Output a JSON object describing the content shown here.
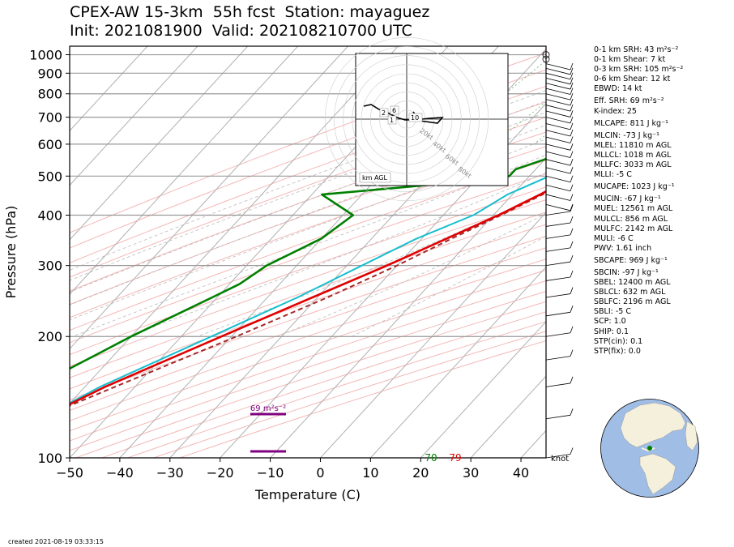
{
  "header": {
    "title_line1": "CPEX-AW 15-3km  55h fcst  Station: mayaguez",
    "title_line2": "Init: 2021081900  Valid: 2021082107​00 UTC"
  },
  "footer": {
    "created": "created 2021-08-19 03:33:15"
  },
  "colors": {
    "temperature": "#e00000",
    "dewpoint": "#008000",
    "wetbulb": "#17becf",
    "parcel": "#a52a2a",
    "srh_bar": "#800080"
  },
  "chart_data": {
    "type": "skew-t",
    "xlabel": "Temperature (C)",
    "ylabel": "Pressure (hPa)",
    "xlim": [
      -50,
      45
    ],
    "ylim": [
      1050,
      100
    ],
    "x_ticks": [
      -50,
      -40,
      -30,
      -20,
      -10,
      0,
      10,
      20,
      30,
      40
    ],
    "y_ticks": [
      100,
      200,
      300,
      400,
      500,
      600,
      700,
      800,
      900,
      1000
    ],
    "temperature": [
      [
        1000,
        27
      ],
      [
        975,
        25.3
      ],
      [
        950,
        24
      ],
      [
        925,
        22.5
      ],
      [
        900,
        21
      ],
      [
        850,
        18
      ],
      [
        800,
        15.5
      ],
      [
        775,
        14.5
      ],
      [
        750,
        13
      ],
      [
        700,
        10
      ],
      [
        650,
        7
      ],
      [
        600,
        4
      ],
      [
        550,
        1.5
      ],
      [
        500,
        -1
      ],
      [
        450,
        -4.5
      ],
      [
        400,
        -9
      ],
      [
        350,
        -15
      ],
      [
        300,
        -22
      ],
      [
        250,
        -31
      ],
      [
        200,
        -42
      ],
      [
        150,
        -56
      ],
      [
        125,
        -63
      ],
      [
        100,
        -71
      ]
    ],
    "dewpoint": [
      [
        1000,
        21
      ],
      [
        975,
        20.3
      ],
      [
        950,
        19.5
      ],
      [
        925,
        19
      ],
      [
        900,
        17.5
      ],
      [
        850,
        14
      ],
      [
        800,
        11
      ],
      [
        750,
        6
      ],
      [
        700,
        -1
      ],
      [
        650,
        -3
      ],
      [
        600,
        -5
      ],
      [
        550,
        -10
      ],
      [
        520,
        -14
      ],
      [
        500,
        -14
      ],
      [
        480,
        -25
      ],
      [
        450,
        -48
      ],
      [
        400,
        -38
      ],
      [
        350,
        -40
      ],
      [
        300,
        -46
      ],
      [
        270,
        -48
      ],
      [
        250,
        -51
      ],
      [
        200,
        -60
      ],
      [
        150,
        -70
      ],
      [
        125,
        -79
      ],
      [
        100,
        -85
      ]
    ],
    "wetbulb": [
      [
        1000,
        23
      ],
      [
        975,
        22
      ],
      [
        950,
        21.5
      ],
      [
        925,
        20.5
      ],
      [
        900,
        19
      ],
      [
        850,
        16
      ],
      [
        800,
        13
      ],
      [
        750,
        10
      ],
      [
        700,
        6
      ],
      [
        650,
        3
      ],
      [
        600,
        1
      ],
      [
        550,
        -3
      ],
      [
        500,
        -6
      ],
      [
        450,
        -11
      ],
      [
        400,
        -14
      ],
      [
        350,
        -21
      ],
      [
        300,
        -27
      ],
      [
        250,
        -34
      ],
      [
        200,
        -44
      ],
      [
        150,
        -57
      ],
      [
        125,
        -63
      ],
      [
        100,
        -71
      ]
    ],
    "parcel": [
      [
        1000,
        29
      ],
      [
        950,
        25.5
      ],
      [
        900,
        22.5
      ],
      [
        850,
        19.5
      ],
      [
        800,
        17
      ],
      [
        750,
        14.5
      ],
      [
        700,
        12
      ],
      [
        650,
        9
      ],
      [
        600,
        6
      ],
      [
        550,
        3
      ],
      [
        500,
        -0.5
      ],
      [
        450,
        -4
      ],
      [
        400,
        -8.5
      ],
      [
        350,
        -14
      ],
      [
        300,
        -20
      ],
      [
        250,
        -28
      ],
      [
        200,
        -39
      ],
      [
        150,
        -54
      ],
      [
        100,
        -75
      ]
    ],
    "surface_labels": {
      "dewpoint": "70",
      "temperature": "79"
    },
    "srh_annotation": "69 m²s⁻²",
    "hodograph": {
      "label": "km AGL",
      "ring_labels": [
        "20kt",
        "40kt",
        "60kt",
        "80kt"
      ],
      "height_labels": [
        "1",
        "2",
        "6",
        "10"
      ]
    },
    "wind_units": "knot"
  },
  "stats": [
    "0-1 km SRH: 43 m²s⁻²",
    "0-1 km Shear: 7 kt",
    "0-3 km SRH: 105 m²s⁻²",
    "0-6 km Shear: 12 kt",
    "EBWD: 14 kt",
    "Eff. SRH: 69 m²s⁻²",
    "K-index: 25",
    "MLCAPE: 811 J kg⁻¹",
    "MLCIN: -73 J kg⁻¹",
    "MLEL: 11810 m AGL",
    "MLLCL: 1018 m AGL",
    "MLLFC: 3033 m AGL",
    "MLLI: -5 C",
    "MUCAPE: 1023 J kg⁻¹",
    "MUCIN: -67 J kg⁻¹",
    "MUEL: 12561 m AGL",
    "MULCL: 856 m AGL",
    "MULFC: 2142 m AGL",
    "MULI: -6 C",
    "PWV: 1.61 inch",
    "SBCAPE: 969 J kg⁻¹",
    "SBCIN: -97 J kg⁻¹",
    "SBEL: 12400 m AGL",
    "SBLCL: 632 m AGL",
    "SBLFC: 2196 m AGL",
    "SBLI: -5 C",
    "SCP: 1.0",
    "SHIP: 0.1",
    "STP(cin): 0.1",
    "STP(fix): 0.0"
  ]
}
